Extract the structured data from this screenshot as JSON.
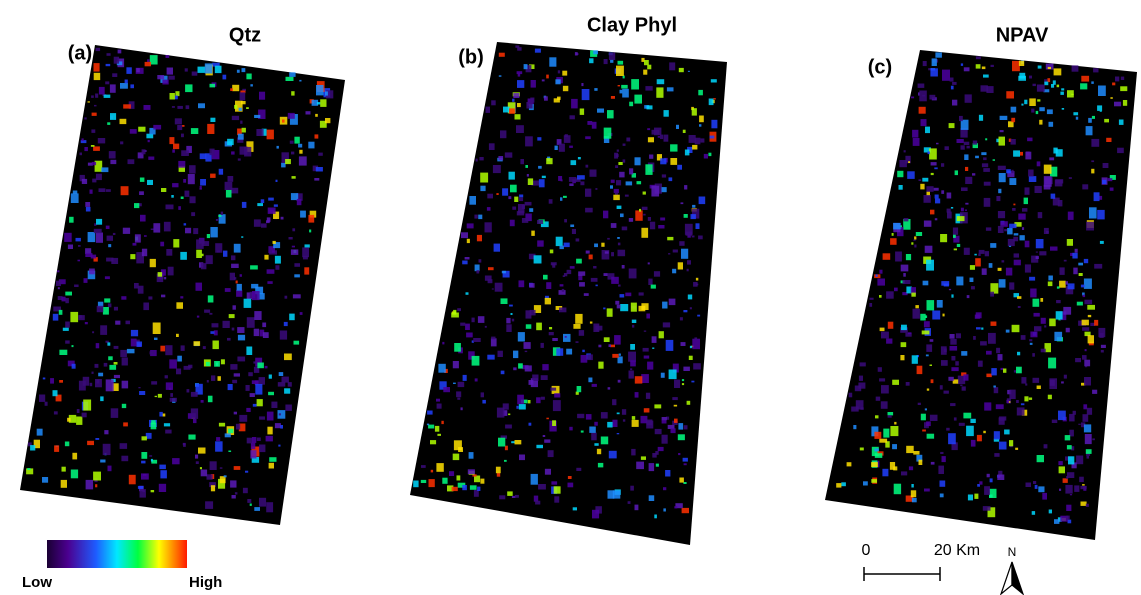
{
  "panels": [
    {
      "label": "(a)",
      "title": "Qtz"
    },
    {
      "label": "(b)",
      "title": "Clay Phyl"
    },
    {
      "label": "(c)",
      "title": "NPAV"
    }
  ],
  "legend": {
    "low": "Low",
    "high": "High"
  },
  "scale_bar": {
    "start": "0",
    "end": "20 Km"
  },
  "north": "N"
}
